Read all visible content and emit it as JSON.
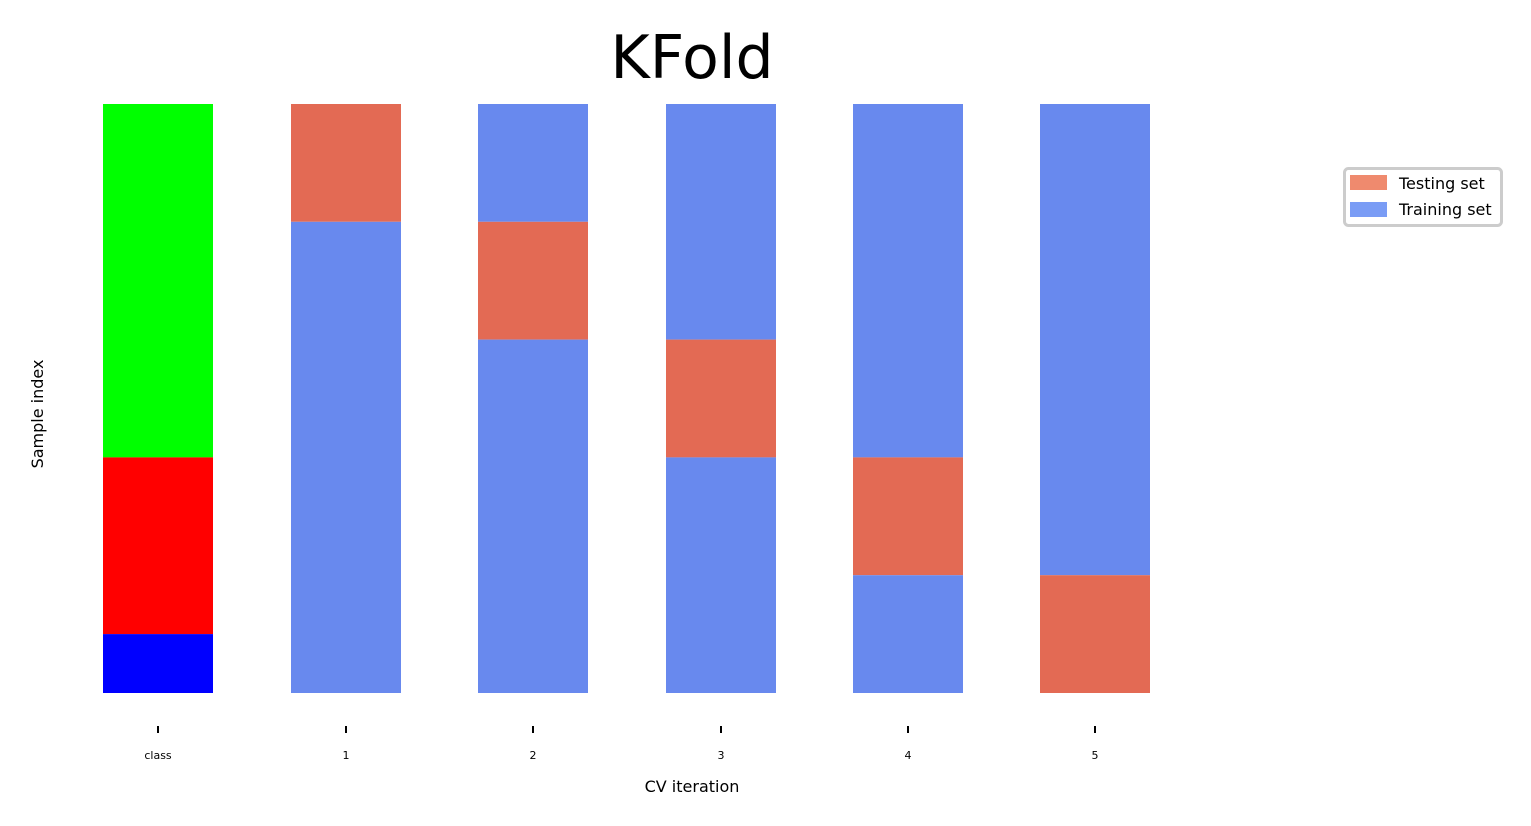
{
  "chart_data": {
    "type": "bar",
    "title": "KFold",
    "xlabel": "CV iteration",
    "ylabel": "Sample index",
    "categories": [
      "class",
      "1",
      "2",
      "3",
      "4",
      "5"
    ],
    "n_samples": 150,
    "ylim": [
      0,
      150
    ],
    "class_segments": [
      {
        "start": 0,
        "end": 90,
        "color": "#00ff00"
      },
      {
        "start": 90,
        "end": 135,
        "color": "#ff0000"
      },
      {
        "start": 135,
        "end": 150,
        "color": "#0000ff"
      }
    ],
    "folds": [
      {
        "label": "1",
        "test_start": 0,
        "test_end": 30
      },
      {
        "label": "2",
        "test_start": 30,
        "test_end": 60
      },
      {
        "label": "3",
        "test_start": 60,
        "test_end": 90
      },
      {
        "label": "4",
        "test_start": 90,
        "test_end": 120
      },
      {
        "label": "5",
        "test_start": 120,
        "test_end": 150
      }
    ],
    "legend": {
      "placement": "right",
      "items": [
        {
          "name": "Testing set",
          "color": "#e36a54",
          "swatch": "#ef8a6e"
        },
        {
          "name": "Training set",
          "color": "#6889ee",
          "swatch": "#7a9cf5"
        }
      ]
    }
  }
}
